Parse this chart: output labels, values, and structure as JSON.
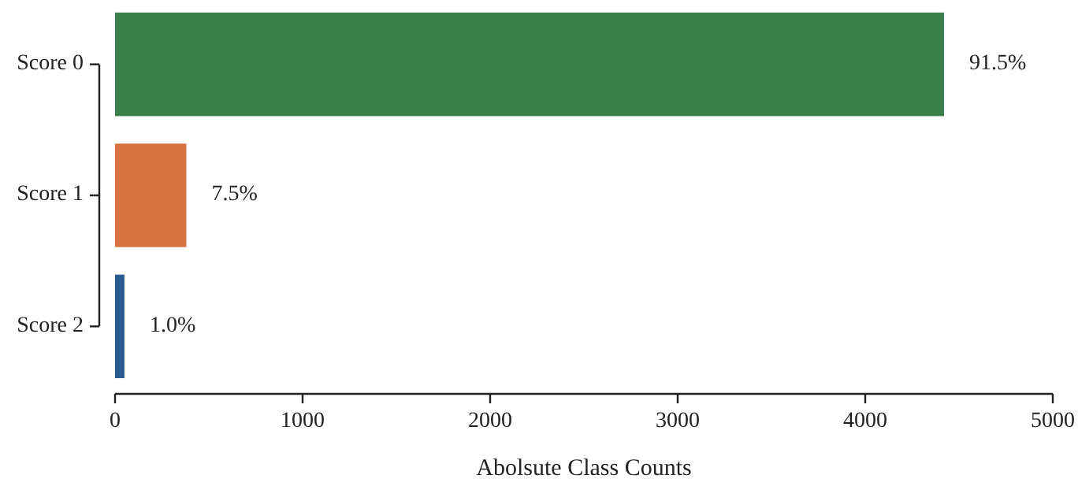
{
  "chart_data": {
    "type": "bar",
    "orientation": "horizontal",
    "xlabel": "Abolsute Class Counts",
    "categories": [
      "Score 0",
      "Score 1",
      "Score 2"
    ],
    "values": [
      4420,
      380,
      50
    ],
    "colors": [
      "#3a804a",
      "#d97442",
      "#2c5a92"
    ],
    "annotations": [
      {
        "text": "91.5%",
        "x": 4420,
        "y": "Score 0"
      },
      {
        "text": "7.5%",
        "x": 380,
        "y": "Score 1"
      },
      {
        "text": "1.0%",
        "x": 50,
        "y": "Score 2"
      }
    ],
    "xlim": [
      0,
      5000
    ],
    "xticks": [
      0,
      1000,
      2000,
      3000,
      4000,
      5000
    ],
    "grid": false
  }
}
